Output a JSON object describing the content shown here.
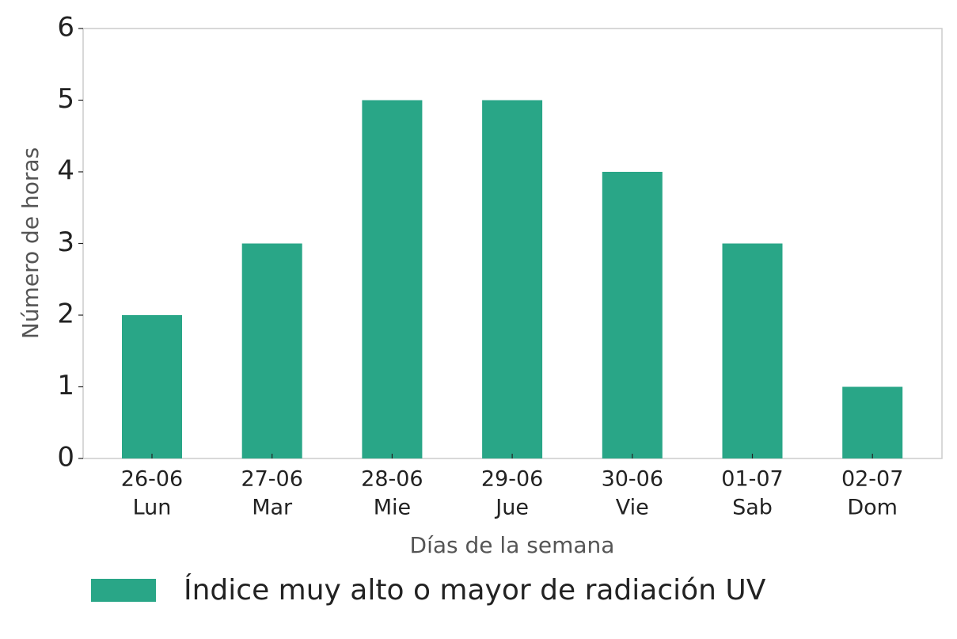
{
  "chart_data": {
    "type": "bar",
    "categories": [
      [
        "26-06",
        "Lun"
      ],
      [
        "27-06",
        "Mar"
      ],
      [
        "28-06",
        "Mie"
      ],
      [
        "29-06",
        "Jue"
      ],
      [
        "30-06",
        "Vie"
      ],
      [
        "01-07",
        "Sab"
      ],
      [
        "02-07",
        "Dom"
      ]
    ],
    "series": [
      {
        "name": "Índice muy alto o mayor de radiación UV",
        "color": "#29a687",
        "values": [
          2,
          3,
          5,
          5,
          4,
          3,
          1
        ]
      }
    ],
    "xlabel": "Días de la semana",
    "ylabel": "Número de horas",
    "ylim": [
      0,
      6
    ],
    "yticks": [
      0,
      1,
      2,
      3,
      4,
      5,
      6
    ],
    "grid": false,
    "legend": "bottom"
  }
}
